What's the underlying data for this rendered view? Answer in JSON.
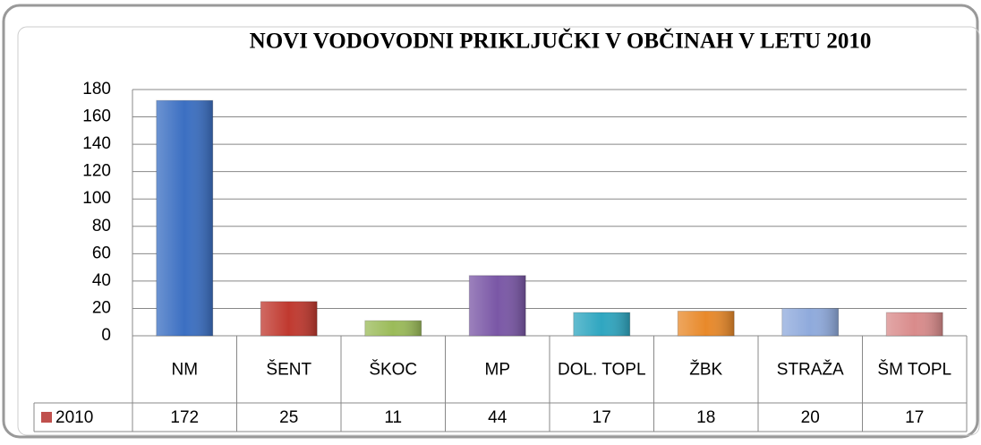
{
  "chart_data": {
    "type": "bar",
    "title": "NOVI VODOVODNI PRIKLJUČKI V OBČINAH V LETU 2010",
    "categories": [
      "NM",
      "ŠENT",
      "ŠKOC",
      "MP",
      "DOL. TOPL",
      "ŽBK",
      "STRAŽA",
      "ŠM TOPL"
    ],
    "series": [
      {
        "name": "2010",
        "color": "#c0504d",
        "colors": [
          "#3b6fc2",
          "#c0392f",
          "#9bbb59",
          "#7a57a6",
          "#2fa6c0",
          "#e8892a",
          "#8faadc",
          "#d98b8b"
        ],
        "values": [
          172,
          25,
          11,
          44,
          17,
          18,
          20,
          17
        ]
      }
    ],
    "ylim": [
      0,
      180
    ],
    "yticks": [
      0,
      20,
      40,
      60,
      80,
      100,
      120,
      140,
      160,
      180
    ],
    "grid": true
  }
}
